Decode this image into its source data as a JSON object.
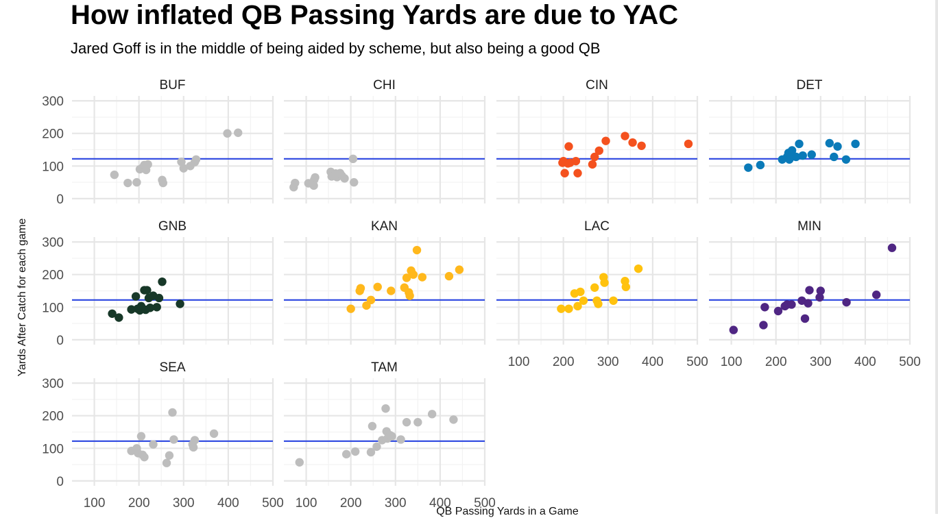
{
  "title": "How inflated QB Passing Yards are due to YAC",
  "subtitle": "Jared Goff is in the middle of being aided by scheme, but also being a good QB",
  "chart_data": {
    "type": "scatter",
    "facet": "small multiples",
    "ylabel": "Yards After Catch for each game",
    "xlabel": "QB Passing Yards in a Game",
    "xlim": [
      50,
      500
    ],
    "ylim": [
      -15,
      315
    ],
    "x_ticks": [
      100,
      200,
      300,
      400,
      500
    ],
    "y_ticks": [
      0,
      100,
      200,
      300
    ],
    "reference_line_y": 122,
    "reference_line_color": "#2a45e0",
    "grid": true,
    "panels": [
      {
        "name": "BUF",
        "color": "#bdbdbd",
        "points": [
          [
            145,
            73
          ],
          [
            175,
            48
          ],
          [
            195,
            50
          ],
          [
            202,
            90
          ],
          [
            208,
            95
          ],
          [
            212,
            103
          ],
          [
            216,
            88
          ],
          [
            220,
            105
          ],
          [
            252,
            57
          ],
          [
            254,
            48
          ],
          [
            295,
            113
          ],
          [
            300,
            93
          ],
          [
            315,
            100
          ],
          [
            325,
            112
          ],
          [
            328,
            120
          ],
          [
            398,
            200
          ],
          [
            422,
            202
          ]
        ]
      },
      {
        "name": "CHI",
        "color": "#bdbdbd",
        "points": [
          [
            72,
            35
          ],
          [
            75,
            48
          ],
          [
            105,
            47
          ],
          [
            117,
            40
          ],
          [
            118,
            58
          ],
          [
            120,
            65
          ],
          [
            155,
            82
          ],
          [
            157,
            68
          ],
          [
            166,
            77
          ],
          [
            169,
            66
          ],
          [
            176,
            78
          ],
          [
            180,
            70
          ],
          [
            186,
            62
          ],
          [
            205,
            122
          ],
          [
            207,
            50
          ]
        ]
      },
      {
        "name": "CIN",
        "color": "#f4511e",
        "points": [
          [
            198,
            110
          ],
          [
            200,
            115
          ],
          [
            203,
            78
          ],
          [
            210,
            108
          ],
          [
            212,
            160
          ],
          [
            215,
            110
          ],
          [
            228,
            115
          ],
          [
            232,
            78
          ],
          [
            265,
            105
          ],
          [
            270,
            128
          ],
          [
            280,
            147
          ],
          [
            295,
            177
          ],
          [
            338,
            192
          ],
          [
            355,
            172
          ],
          [
            375,
            162
          ],
          [
            480,
            168
          ]
        ]
      },
      {
        "name": "DET",
        "color": "#0a7ab8",
        "points": [
          [
            138,
            95
          ],
          [
            165,
            103
          ],
          [
            214,
            120
          ],
          [
            225,
            128
          ],
          [
            228,
            140
          ],
          [
            230,
            120
          ],
          [
            236,
            148
          ],
          [
            240,
            130
          ],
          [
            245,
            128
          ],
          [
            252,
            168
          ],
          [
            260,
            132
          ],
          [
            280,
            135
          ],
          [
            320,
            170
          ],
          [
            330,
            128
          ],
          [
            338,
            160
          ],
          [
            357,
            120
          ],
          [
            378,
            168
          ]
        ]
      },
      {
        "name": "GNB",
        "color": "#173828",
        "points": [
          [
            140,
            80
          ],
          [
            155,
            68
          ],
          [
            183,
            93
          ],
          [
            193,
            133
          ],
          [
            197,
            95
          ],
          [
            202,
            90
          ],
          [
            205,
            103
          ],
          [
            212,
            152
          ],
          [
            215,
            92
          ],
          [
            218,
            152
          ],
          [
            222,
            128
          ],
          [
            225,
            98
          ],
          [
            232,
            135
          ],
          [
            240,
            100
          ],
          [
            245,
            128
          ],
          [
            252,
            178
          ],
          [
            292,
            110
          ]
        ]
      },
      {
        "name": "KAN",
        "color": "#ffb81c",
        "points": [
          [
            200,
            95
          ],
          [
            220,
            150
          ],
          [
            222,
            158
          ],
          [
            235,
            105
          ],
          [
            245,
            122
          ],
          [
            260,
            162
          ],
          [
            290,
            150
          ],
          [
            320,
            160
          ],
          [
            325,
            190
          ],
          [
            330,
            145
          ],
          [
            332,
            135
          ],
          [
            335,
            212
          ],
          [
            340,
            200
          ],
          [
            348,
            275
          ],
          [
            360,
            192
          ],
          [
            420,
            195
          ],
          [
            443,
            215
          ]
        ]
      },
      {
        "name": "LAC",
        "color": "#ffc20e",
        "points": [
          [
            195,
            95
          ],
          [
            212,
            95
          ],
          [
            225,
            142
          ],
          [
            232,
            103
          ],
          [
            238,
            147
          ],
          [
            245,
            120
          ],
          [
            270,
            160
          ],
          [
            275,
            120
          ],
          [
            278,
            110
          ],
          [
            290,
            192
          ],
          [
            292,
            175
          ],
          [
            312,
            120
          ],
          [
            338,
            180
          ],
          [
            340,
            162
          ],
          [
            368,
            218
          ]
        ]
      },
      {
        "name": "MIN",
        "color": "#4f2683",
        "points": [
          [
            105,
            30
          ],
          [
            172,
            45
          ],
          [
            175,
            100
          ],
          [
            205,
            88
          ],
          [
            220,
            103
          ],
          [
            225,
            108
          ],
          [
            235,
            108
          ],
          [
            258,
            120
          ],
          [
            265,
            65
          ],
          [
            272,
            112
          ],
          [
            275,
            152
          ],
          [
            298,
            130
          ],
          [
            300,
            150
          ],
          [
            358,
            115
          ],
          [
            425,
            138
          ],
          [
            460,
            282
          ]
        ]
      },
      {
        "name": "SEA",
        "color": "#bdbdbd",
        "points": [
          [
            183,
            92
          ],
          [
            195,
            100
          ],
          [
            198,
            85
          ],
          [
            205,
            137
          ],
          [
            208,
            80
          ],
          [
            212,
            73
          ],
          [
            232,
            112
          ],
          [
            262,
            55
          ],
          [
            268,
            78
          ],
          [
            275,
            210
          ],
          [
            278,
            127
          ],
          [
            320,
            112
          ],
          [
            322,
            103
          ],
          [
            325,
            125
          ],
          [
            368,
            145
          ]
        ]
      },
      {
        "name": "TAM",
        "color": "#bdbdbd",
        "points": [
          [
            85,
            57
          ],
          [
            190,
            82
          ],
          [
            210,
            90
          ],
          [
            245,
            88
          ],
          [
            248,
            168
          ],
          [
            258,
            105
          ],
          [
            270,
            125
          ],
          [
            278,
            222
          ],
          [
            280,
            152
          ],
          [
            282,
            130
          ],
          [
            288,
            140
          ],
          [
            292,
            137
          ],
          [
            312,
            127
          ],
          [
            325,
            180
          ],
          [
            350,
            180
          ],
          [
            382,
            205
          ],
          [
            430,
            188
          ]
        ]
      }
    ]
  }
}
